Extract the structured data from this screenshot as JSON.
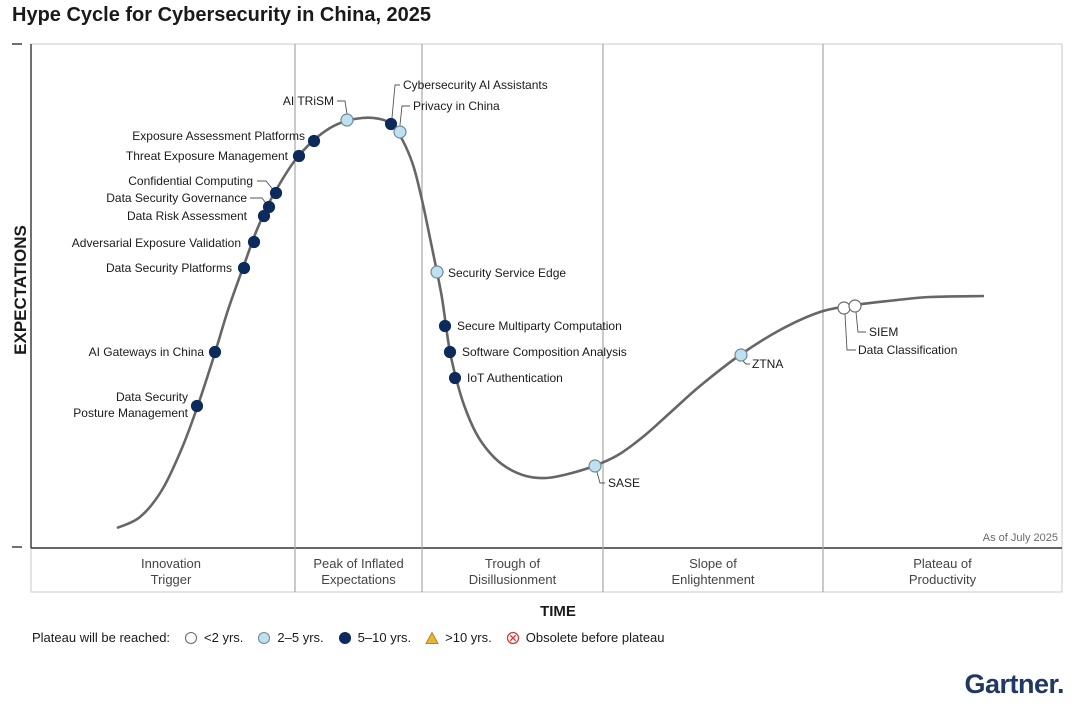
{
  "title": "Hype Cycle for Cybersecurity in China, 2025",
  "brand": "Gartner.",
  "chart_data": {
    "type": "hype-cycle",
    "xlabel": "TIME",
    "ylabel": "EXPECTATIONS",
    "annotation": "As of July 2025",
    "phases": [
      {
        "line1": "Innovation",
        "line2": "Trigger"
      },
      {
        "line1": "Peak of Inflated",
        "line2": "Expectations"
      },
      {
        "line1": "Trough of",
        "line2": "Disillusionment"
      },
      {
        "line1": "Slope of",
        "line2": "Enlightenment"
      },
      {
        "line1": "Plateau of",
        "line2": "Productivity"
      }
    ],
    "technologies": [
      {
        "name": "Data Security Posture Management",
        "lines": [
          "Data Security",
          "Posture Management"
        ],
        "phase": "Innovation Trigger",
        "plateau": "5-10"
      },
      {
        "name": "AI Gateways in China",
        "lines": [
          "AI Gateways in China"
        ],
        "phase": "Innovation Trigger",
        "plateau": "5-10"
      },
      {
        "name": "Data Security Platforms",
        "lines": [
          "Data Security Platforms"
        ],
        "phase": "Innovation Trigger",
        "plateau": "5-10"
      },
      {
        "name": "Adversarial Exposure Validation",
        "lines": [
          "Adversarial Exposure Validation"
        ],
        "phase": "Innovation Trigger",
        "plateau": "5-10"
      },
      {
        "name": "Data Risk Assessment",
        "lines": [
          "Data Risk Assessment"
        ],
        "phase": "Innovation Trigger",
        "plateau": "5-10"
      },
      {
        "name": "Data Security Governance",
        "lines": [
          "Data Security Governance"
        ],
        "phase": "Innovation Trigger",
        "plateau": "5-10"
      },
      {
        "name": "Confidential Computing",
        "lines": [
          "Confidential Computing"
        ],
        "phase": "Innovation Trigger",
        "plateau": "5-10"
      },
      {
        "name": "Threat Exposure Management",
        "lines": [
          "Threat Exposure Management"
        ],
        "phase": "Peak of Inflated Expectations",
        "plateau": "5-10"
      },
      {
        "name": "Exposure Assessment Platforms",
        "lines": [
          "Exposure Assessment Platforms"
        ],
        "phase": "Peak of Inflated Expectations",
        "plateau": "5-10"
      },
      {
        "name": "AI TRiSM",
        "lines": [
          "AI TRiSM"
        ],
        "phase": "Peak of Inflated Expectations",
        "plateau": "2-5"
      },
      {
        "name": "Cybersecurity AI Assistants",
        "lines": [
          "Cybersecurity AI Assistants"
        ],
        "phase": "Peak of Inflated Expectations",
        "plateau": "5-10"
      },
      {
        "name": "Privacy in China",
        "lines": [
          "Privacy in China"
        ],
        "phase": "Peak of Inflated Expectations",
        "plateau": "2-5"
      },
      {
        "name": "Security Service Edge",
        "lines": [
          "Security Service Edge"
        ],
        "phase": "Trough of Disillusionment",
        "plateau": "2-5"
      },
      {
        "name": "Secure Multiparty Computation",
        "lines": [
          "Secure Multiparty Computation"
        ],
        "phase": "Trough of Disillusionment",
        "plateau": "5-10"
      },
      {
        "name": "Software Composition Analysis",
        "lines": [
          "Software Composition Analysis"
        ],
        "phase": "Trough of Disillusionment",
        "plateau": "5-10"
      },
      {
        "name": "IoT Authentication",
        "lines": [
          "IoT Authentication"
        ],
        "phase": "Trough of Disillusionment",
        "plateau": "5-10"
      },
      {
        "name": "SASE",
        "lines": [
          "SASE"
        ],
        "phase": "Trough of Disillusionment",
        "plateau": "2-5"
      },
      {
        "name": "ZTNA",
        "lines": [
          "ZTNA"
        ],
        "phase": "Slope of Enlightenment",
        "plateau": "2-5"
      },
      {
        "name": "Data Classification",
        "lines": [
          "Data Classification"
        ],
        "phase": "Slope of Enlightenment",
        "plateau": "<2"
      },
      {
        "name": "SIEM",
        "lines": [
          "SIEM"
        ],
        "phase": "Slope of Enlightenment",
        "plateau": "<2"
      }
    ],
    "legend": {
      "label": "Plateau will be reached:",
      "items": [
        {
          "key": "<2",
          "label": "<2 yrs.",
          "color": "#ffffff",
          "shape": "circle"
        },
        {
          "key": "2-5",
          "label": "2–5 yrs.",
          "color": "#bfe0ee",
          "shape": "circle"
        },
        {
          "key": "5-10",
          "label": "5–10 yrs.",
          "color": "#0d2a5c",
          "shape": "circle"
        },
        {
          "key": ">10",
          "label": ">10 yrs.",
          "color": "#e8b43a",
          "shape": "triangle"
        },
        {
          "key": "obsolete",
          "label": "Obsolete before plateau",
          "color": "#d63a3a",
          "shape": "cross"
        }
      ]
    },
    "colors": {
      "curve": "#666666",
      "phase_line": "#a6a6a6",
      "marker_stroke": "#6b6b6b"
    }
  }
}
